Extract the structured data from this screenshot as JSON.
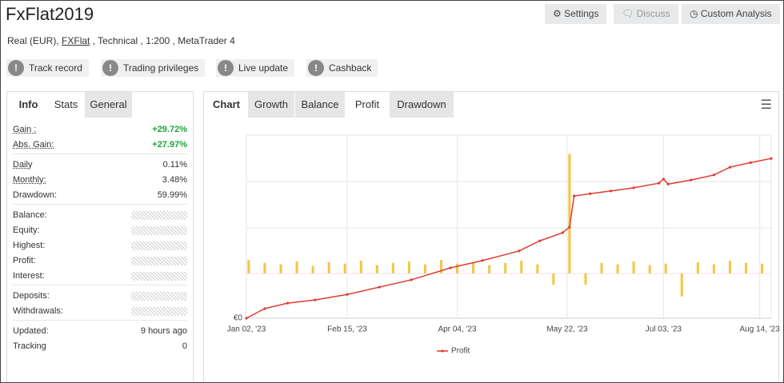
{
  "header": {
    "title": "FxFlat2019",
    "buttons": [
      "Settings",
      "Discuss",
      "Custom Analysis"
    ],
    "subtitle": {
      "prefix": "Real (EUR),",
      "broker": "FXFlat",
      "suffix": ", Technical , 1:200 , MetaTrader 4"
    },
    "badges": [
      "Track record",
      "Trading privileges",
      "Live update",
      "Cashback"
    ]
  },
  "stats": {
    "tabs": [
      "Info",
      "Stats",
      "General"
    ],
    "active_tab": 1,
    "groups": [
      [
        {
          "label": "Gain :",
          "value": "+29.72%"
        },
        {
          "label": "Abs. Gain:",
          "value": "+27.97%"
        }
      ],
      [
        {
          "label": "Daily",
          "value": "0.11%"
        },
        {
          "label": "Monthly:",
          "value": "3.48%"
        },
        {
          "label": "Drawdown:",
          "value": "59.99%"
        }
      ],
      [
        {
          "label": "Balance:"
        },
        {
          "label": "Equity:"
        },
        {
          "label": "Highest:"
        },
        {
          "label": "Profit:"
        },
        {
          "label": "Interest:"
        }
      ],
      [
        {
          "label": "Deposits:"
        },
        {
          "label": "Withdrawals:"
        }
      ],
      [
        {
          "label": "Updated:",
          "value": "9 hours ago"
        },
        {
          "label": "Tracking",
          "value": "0"
        }
      ]
    ]
  },
  "chart_panel": {
    "label": "Chart",
    "tabs": [
      "Growth",
      "Balance",
      "Profit",
      "Drawdown"
    ],
    "active_tab": 2
  },
  "chart_data": {
    "type": "line",
    "xlim": [
      "2023-01-02",
      "2023-08-19"
    ],
    "xticks": [
      {
        "value": "2023-01-02",
        "label": "Jan 02, '23"
      },
      {
        "value": "2023-02-15",
        "label": "Feb 15, '23"
      },
      {
        "value": "2023-04-04",
        "label": "Apr 04, '23"
      },
      {
        "value": "2023-05-22",
        "label": "May 22, '23"
      },
      {
        "value": "2023-07-03",
        "label": "Jul 03, '23"
      },
      {
        "value": "2023-08-14",
        "label": "Aug 14, '23"
      }
    ],
    "ylim": [
      0,
      4000
    ],
    "yticks": [
      {
        "value": 0,
        "label": "€0"
      }
    ],
    "y2lim": [
      -60,
      185
    ],
    "grid": true,
    "legend": "bottom",
    "series": [
      {
        "name": "Profit",
        "color": "#e03c31",
        "x": [
          "2023-01-02",
          "2023-01-10",
          "2023-01-20",
          "2023-02-01",
          "2023-02-15",
          "2023-03-01",
          "2023-03-15",
          "2023-04-01",
          "2023-04-15",
          "2023-05-01",
          "2023-05-10",
          "2023-05-20",
          "2023-05-23",
          "2023-05-25",
          "2023-06-01",
          "2023-06-10",
          "2023-06-20",
          "2023-07-01",
          "2023-07-03",
          "2023-07-05",
          "2023-07-15",
          "2023-07-25",
          "2023-08-01",
          "2023-08-10",
          "2023-08-19"
        ],
        "values": [
          0,
          210,
          330,
          400,
          520,
          680,
          840,
          1100,
          1260,
          1470,
          1690,
          1870,
          1990,
          2670,
          2720,
          2780,
          2850,
          2950,
          3040,
          2930,
          3020,
          3130,
          3300,
          3400,
          3490
        ]
      },
      {
        "color": "#f5c443",
        "axis": "y2",
        "type": "bar",
        "x": [
          "2023-01-03",
          "2023-01-10",
          "2023-01-17",
          "2023-01-24",
          "2023-01-31",
          "2023-02-07",
          "2023-02-14",
          "2023-02-21",
          "2023-02-28",
          "2023-03-07",
          "2023-03-14",
          "2023-03-21",
          "2023-03-28",
          "2023-04-04",
          "2023-04-11",
          "2023-04-18",
          "2023-04-25",
          "2023-05-02",
          "2023-05-09",
          "2023-05-16",
          "2023-05-23",
          "2023-05-30",
          "2023-06-06",
          "2023-06-13",
          "2023-06-20",
          "2023-06-27",
          "2023-07-04",
          "2023-07-11",
          "2023-07-18",
          "2023-07-25",
          "2023-08-01",
          "2023-08-08",
          "2023-08-15"
        ],
        "values": [
          18,
          14,
          12,
          16,
          10,
          15,
          13,
          17,
          11,
          14,
          16,
          12,
          18,
          13,
          15,
          11,
          14,
          17,
          12,
          -15,
          160,
          -15,
          14,
          12,
          16,
          11,
          13,
          -31,
          15,
          12,
          17,
          14,
          13
        ]
      }
    ]
  }
}
